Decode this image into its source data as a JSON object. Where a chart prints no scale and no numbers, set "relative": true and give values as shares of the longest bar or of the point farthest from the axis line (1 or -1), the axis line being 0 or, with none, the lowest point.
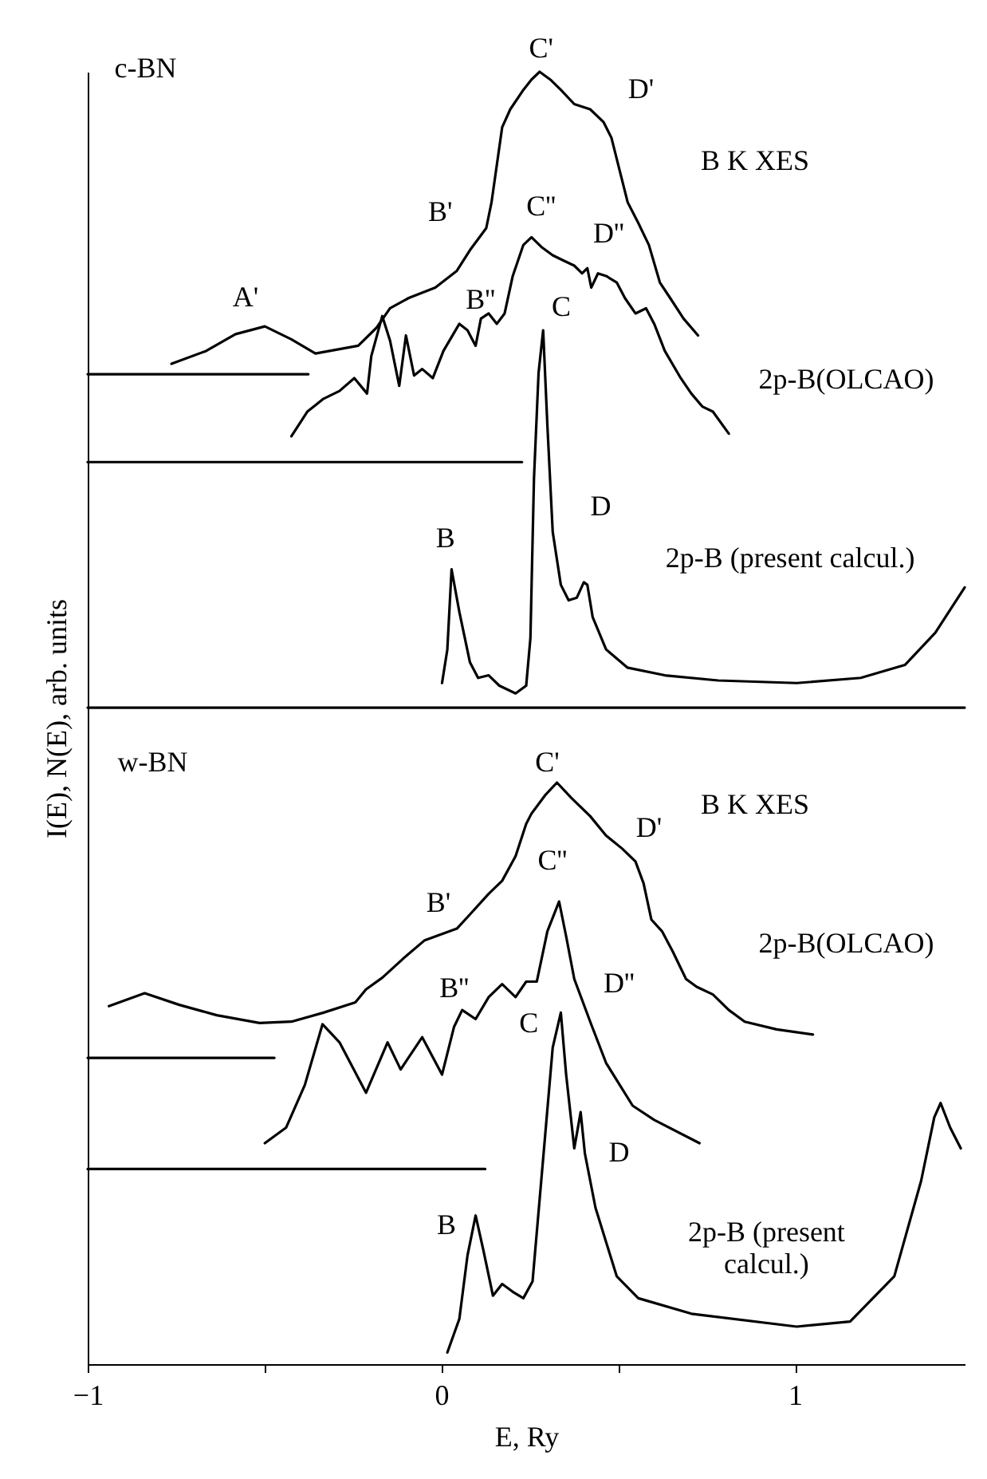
{
  "chart_data": {
    "type": "line",
    "relative": true,
    "line_style": "solid",
    "xlabel": "E, Ry",
    "ylabel": "I(E), N(E), arb. units",
    "xlim": [
      -1,
      1.48
    ],
    "xticks": [
      {
        "value": -1,
        "label": "−1"
      },
      {
        "value": -0.5,
        "label": null
      },
      0,
      {
        "value": 0.5,
        "label": null
      },
      1
    ],
    "series": [
      {
        "color": "#000000",
        "x": [
          -0.763,
          -0.665,
          -0.582,
          -0.499,
          -0.424,
          -0.356,
          -0.235,
          -0.183,
          -0.145,
          -0.092,
          -0.017,
          0.044,
          0.081,
          0.127,
          0.142,
          0.172,
          0.195,
          0.232,
          0.255,
          0.278,
          0.308,
          0.338,
          0.376,
          0.421,
          0.459,
          0.481,
          0.504,
          0.527,
          0.557,
          0.587,
          0.618,
          0.647,
          0.685,
          0.726
        ],
        "values": [
          0.774,
          0.784,
          0.797,
          0.803,
          0.793,
          0.782,
          0.788,
          0.802,
          0.817,
          0.825,
          0.833,
          0.846,
          0.862,
          0.879,
          0.899,
          0.957,
          0.971,
          0.986,
          0.994,
          1.0,
          0.994,
          0.986,
          0.975,
          0.971,
          0.961,
          0.949,
          0.924,
          0.899,
          0.883,
          0.866,
          0.837,
          0.825,
          0.809,
          0.796
        ]
      },
      {
        "color": "#000000",
        "x": [
          -0.424,
          -0.379,
          -0.333,
          -0.288,
          -0.246,
          -0.21,
          -0.198,
          -0.167,
          -0.145,
          -0.119,
          -0.1,
          -0.077,
          -0.054,
          -0.024,
          0.006,
          0.051,
          0.074,
          0.097,
          0.112,
          0.134,
          0.157,
          0.179,
          0.202,
          0.232,
          0.255,
          0.285,
          0.315,
          0.345,
          0.376,
          0.398,
          0.413,
          0.424,
          0.443,
          0.466,
          0.496,
          0.519,
          0.549,
          0.579,
          0.602,
          0.632,
          0.677,
          0.707,
          0.738,
          0.768,
          0.813
        ],
        "values": [
          0.718,
          0.737,
          0.747,
          0.753,
          0.763,
          0.751,
          0.78,
          0.811,
          0.792,
          0.757,
          0.796,
          0.765,
          0.77,
          0.763,
          0.784,
          0.805,
          0.8,
          0.788,
          0.809,
          0.813,
          0.805,
          0.813,
          0.842,
          0.866,
          0.872,
          0.864,
          0.858,
          0.854,
          0.85,
          0.844,
          0.848,
          0.833,
          0.844,
          0.842,
          0.837,
          0.825,
          0.813,
          0.817,
          0.805,
          0.784,
          0.763,
          0.751,
          0.741,
          0.737,
          0.72
        ]
      },
      {
        "color": "#000000",
        "x": [
          0.002,
          0.017,
          0.029,
          0.051,
          0.081,
          0.104,
          0.134,
          0.164,
          0.21,
          0.24,
          0.252,
          0.262,
          0.275,
          0.288,
          0.3,
          0.315,
          0.338,
          0.36,
          0.383,
          0.403,
          0.413,
          0.428,
          0.466,
          0.526,
          0.632,
          0.783,
          1.005,
          1.186,
          1.311,
          1.397,
          1.48
        ],
        "values": [
          0.527,
          0.553,
          0.615,
          0.582,
          0.543,
          0.531,
          0.533,
          0.525,
          0.519,
          0.525,
          0.562,
          0.685,
          0.767,
          0.8,
          0.726,
          0.644,
          0.603,
          0.591,
          0.593,
          0.605,
          0.603,
          0.578,
          0.553,
          0.539,
          0.533,
          0.529,
          0.527,
          0.531,
          0.541,
          0.566,
          0.601
        ]
      },
      {
        "color": "#000000",
        "x": [
          -1,
          -0.376
        ],
        "values": [
          0.766,
          0.766
        ]
      },
      {
        "color": "#000000",
        "x": [
          -1,
          0.228
        ],
        "values": [
          0.698,
          0.698
        ]
      },
      {
        "color": "#000000",
        "x": [
          -1,
          1.48
        ],
        "values": [
          0.508,
          0.508
        ]
      },
      {
        "color": "#000000",
        "x": [
          -0.94,
          -0.839,
          -0.741,
          -0.635,
          -0.514,
          -0.424,
          -0.333,
          -0.243,
          -0.213,
          -0.167,
          -0.107,
          -0.047,
          0.044,
          0.081,
          0.134,
          0.172,
          0.21,
          0.24,
          0.255,
          0.293,
          0.327,
          0.368,
          0.421,
          0.466,
          0.511,
          0.549,
          0.572,
          0.594,
          0.624,
          0.655,
          0.692,
          0.722,
          0.768,
          0.813,
          0.858,
          0.948,
          1.051
        ],
        "values": [
          0.277,
          0.287,
          0.278,
          0.27,
          0.264,
          0.265,
          0.272,
          0.28,
          0.29,
          0.299,
          0.314,
          0.328,
          0.337,
          0.348,
          0.364,
          0.374,
          0.393,
          0.418,
          0.426,
          0.44,
          0.45,
          0.438,
          0.424,
          0.409,
          0.399,
          0.389,
          0.372,
          0.344,
          0.335,
          0.319,
          0.298,
          0.292,
          0.286,
          0.274,
          0.265,
          0.259,
          0.255
        ]
      },
      {
        "color": "#000000",
        "x": [
          -0.499,
          -0.439,
          -0.386,
          -0.336,
          -0.288,
          -0.213,
          -0.152,
          -0.115,
          -0.054,
          0.002,
          0.036,
          0.059,
          0.097,
          0.134,
          0.172,
          0.21,
          0.24,
          0.27,
          0.3,
          0.333,
          0.353,
          0.376,
          0.421,
          0.466,
          0.541,
          0.602,
          0.73
        ],
        "values": [
          0.171,
          0.183,
          0.216,
          0.263,
          0.249,
          0.21,
          0.249,
          0.228,
          0.253,
          0.224,
          0.261,
          0.274,
          0.267,
          0.284,
          0.294,
          0.284,
          0.296,
          0.296,
          0.335,
          0.358,
          0.331,
          0.298,
          0.265,
          0.233,
          0.2,
          0.189,
          0.171
        ]
      },
      {
        "color": "#000000",
        "x": [
          0.017,
          0.051,
          0.074,
          0.097,
          0.119,
          0.146,
          0.172,
          0.202,
          0.232,
          0.258,
          0.293,
          0.315,
          0.338,
          0.353,
          0.376,
          0.394,
          0.406,
          0.436,
          0.496,
          0.557,
          0.707,
          1.005,
          1.156,
          1.281,
          1.357,
          1.394,
          1.412,
          1.439,
          1.469
        ],
        "values": [
          0.009,
          0.035,
          0.084,
          0.115,
          0.088,
          0.053,
          0.062,
          0.056,
          0.051,
          0.064,
          0.175,
          0.245,
          0.272,
          0.224,
          0.167,
          0.195,
          0.163,
          0.121,
          0.068,
          0.051,
          0.039,
          0.029,
          0.033,
          0.068,
          0.142,
          0.191,
          0.202,
          0.183,
          0.167
        ]
      },
      {
        "color": "#000000",
        "x": [
          -1,
          -0.472
        ],
        "values": [
          0.237,
          0.237
        ]
      },
      {
        "color": "#000000",
        "x": [
          -1,
          0.124
        ],
        "values": [
          0.151,
          0.151
        ]
      }
    ],
    "annotations": [
      "c-BN",
      "A'",
      "B'",
      "B''",
      "C'",
      "D'",
      "B K XES",
      "C''",
      "D''",
      "2p-B(OLCAO)",
      "C",
      "D",
      "2p-B (present calcul.)",
      "B",
      "w-BN",
      "C'",
      "B K XES",
      "D'",
      "B'",
      "C''",
      "2p-B(OLCAO)",
      "B''",
      "C",
      "D''",
      "D",
      "2p-B (present\ncalcul.)",
      "B"
    ]
  }
}
